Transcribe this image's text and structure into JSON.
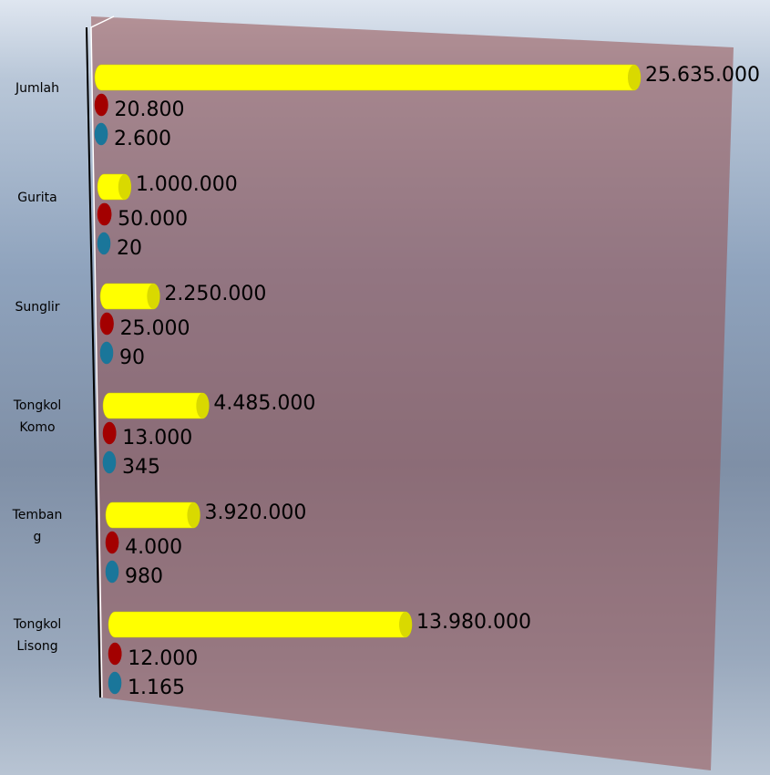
{
  "chart_data": {
    "type": "bar3d-horizontal",
    "categories": [
      "Jumlah",
      "Gurita",
      "Sunglir",
      "Tongkol Komo",
      "Tembang",
      "Tongkol Lisong"
    ],
    "series": [
      {
        "color": "#ffff00",
        "values": [
          25635000,
          1000000,
          2250000,
          4485000,
          3920000,
          13980000
        ],
        "value_labels": [
          "25.635.000",
          "1.000.000",
          "2.250.000",
          "4.485.000",
          "3.920.000",
          "13.980.000"
        ]
      },
      {
        "color": "#c00000",
        "values": [
          20800,
          50000,
          25000,
          13000,
          4000,
          12000
        ],
        "value_labels": [
          "20.800",
          "50.000",
          "25.000",
          "13.000",
          "4.000",
          "12.000"
        ]
      },
      {
        "color": "#1f8bb5",
        "values": [
          2600,
          20,
          90,
          345,
          980,
          1165
        ],
        "value_labels": [
          "2.600",
          "20",
          "90",
          "345",
          "980",
          "1.165"
        ]
      }
    ]
  }
}
